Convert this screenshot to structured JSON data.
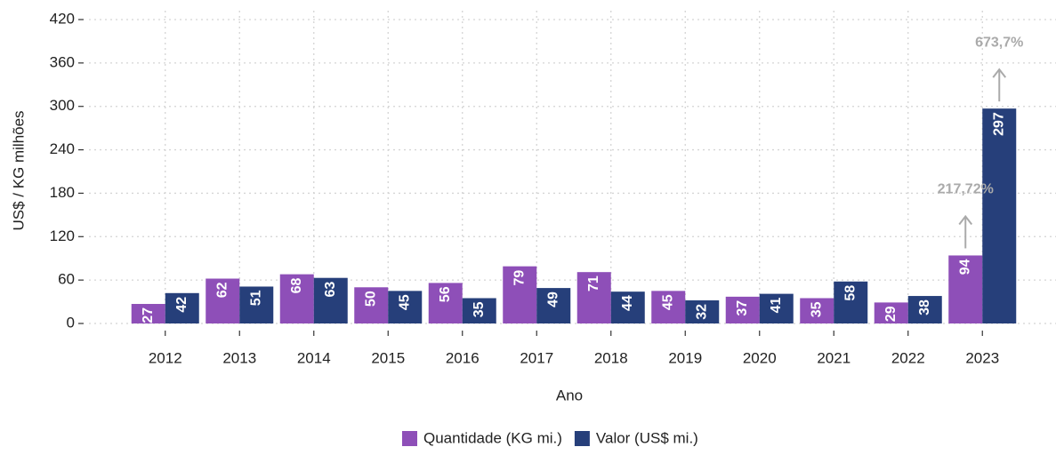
{
  "chart_data": {
    "type": "bar",
    "x_label": "Ano",
    "y_label": "US$ / KG milhões",
    "categories": [
      "2012",
      "2013",
      "2014",
      "2015",
      "2016",
      "2017",
      "2018",
      "2019",
      "2020",
      "2021",
      "2022",
      "2023"
    ],
    "series": [
      {
        "name": "Quantidade (KG mi.)",
        "color": "#8e4fb8",
        "values": [
          27,
          62,
          68,
          50,
          56,
          79,
          71,
          45,
          37,
          35,
          29,
          94
        ]
      },
      {
        "name": "Valor (US$ mi.)",
        "color": "#263f7a",
        "values": [
          42,
          51,
          63,
          45,
          35,
          49,
          44,
          32,
          41,
          58,
          38,
          297
        ]
      }
    ],
    "annotations": [
      "217,72%",
      "673,7%"
    ],
    "ylim": [
      0,
      420
    ],
    "yticks": [
      0,
      60,
      120,
      180,
      240,
      300,
      360,
      420
    ],
    "grid": true,
    "legend": "bottom"
  }
}
